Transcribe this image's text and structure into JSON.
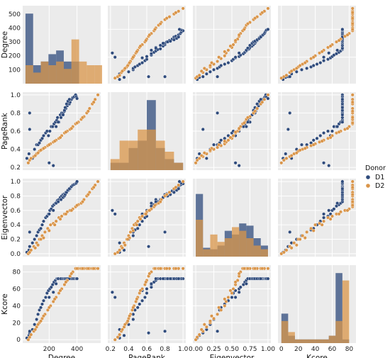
{
  "chart_data": {
    "type": "pairplot",
    "variables": [
      "Degree",
      "PageRank",
      "Eigenvector",
      "Kcore"
    ],
    "hue": {
      "title": "Donor",
      "levels": [
        {
          "name": "D1",
          "color": "#2f4b7c"
        },
        {
          "name": "D2",
          "color": "#d9954a"
        }
      ]
    },
    "axes": {
      "Degree": {
        "lim": [
          10,
          570
        ],
        "ticks": [
          200,
          400
        ],
        "tick_labels": [
          "200",
          "400"
        ],
        "diag_ticks": [
          100,
          200,
          300,
          400,
          500
        ],
        "diag_tick_labels": [
          "100",
          "200",
          "300",
          "400",
          "500"
        ]
      },
      "PageRank": {
        "lim": [
          0.17,
          1.03
        ],
        "ticks": [
          0.2,
          0.4,
          0.6,
          0.8,
          1.0
        ],
        "tick_labels": [
          "0.2",
          "0.4",
          "0.6",
          "0.8",
          "1.0"
        ]
      },
      "Eigenvector": {
        "lim": [
          -0.04,
          1.04
        ],
        "ticks": [
          0.0,
          0.25,
          0.5,
          0.75,
          1.0
        ],
        "tick_labels": [
          "0.00",
          "0.25",
          "0.50",
          "0.75",
          "1.00"
        ],
        "y_tick_labels": [
          "0.0",
          "0.2",
          "0.4",
          "0.6",
          "0.8",
          "1.0"
        ],
        "y_ticks": [
          0.0,
          0.2,
          0.4,
          0.6,
          0.8,
          1.0
        ]
      },
      "Kcore": {
        "lim": [
          -4,
          88
        ],
        "ticks": [
          0,
          20,
          40,
          60,
          80
        ],
        "tick_labels": [
          "0",
          "20",
          "40",
          "60",
          "80"
        ]
      }
    },
    "diag_hist": {
      "Degree": {
        "bins": [
          30,
          85,
          140,
          195,
          250,
          305,
          360,
          415,
          470,
          525,
          580
        ],
        "D1": [
          0.95,
          0.25,
          0.3,
          0.4,
          0.45,
          0.3,
          0.3,
          0.0,
          0.0,
          0.0
        ],
        "D2": [
          0.25,
          0.15,
          0.3,
          0.25,
          0.3,
          0.2,
          0.6,
          0.3,
          0.25,
          0.25
        ]
      },
      "PageRank": {
        "bins": [
          0.2,
          0.3,
          0.4,
          0.5,
          0.6,
          0.7,
          0.8,
          0.9,
          1.0
        ],
        "D1": [
          0.1,
          0.1,
          0.3,
          0.4,
          0.95,
          0.3,
          0.15,
          0.1
        ],
        "D2": [
          0.15,
          0.4,
          0.4,
          0.55,
          0.55,
          0.4,
          0.25,
          0.1
        ]
      },
      "Eigenvector": {
        "bins": [
          0.0,
          0.1,
          0.2,
          0.3,
          0.4,
          0.5,
          0.6,
          0.7,
          0.8,
          0.9,
          1.0
        ],
        "D1": [
          0.85,
          0.12,
          0.1,
          0.15,
          0.35,
          0.3,
          0.45,
          0.42,
          0.25,
          0.15
        ],
        "D2": [
          0.5,
          0.1,
          0.3,
          0.2,
          0.25,
          0.4,
          0.35,
          0.25,
          0.15,
          0.1
        ]
      },
      "Kcore": {
        "bins": [
          0,
          8,
          16,
          24,
          32,
          40,
          48,
          56,
          64,
          72,
          80,
          88
        ],
        "D1": [
          0.4,
          0.1,
          0.05,
          0.05,
          0.05,
          0.05,
          0.05,
          0.1,
          0.95,
          0.05,
          0.0
        ],
        "D2": [
          0.3,
          0.15,
          0.05,
          0.05,
          0.05,
          0.05,
          0.05,
          0.1,
          0.3,
          0.85,
          0.0
        ]
      }
    },
    "series": [
      {
        "name": "D1",
        "Degree": [
          40,
          55,
          60,
          80,
          95,
          110,
          120,
          130,
          140,
          150,
          160,
          175,
          185,
          195,
          205,
          215,
          225,
          235,
          245,
          255,
          260,
          270,
          280,
          290,
          300,
          310,
          320,
          330,
          340,
          345,
          350,
          355,
          360,
          370,
          380,
          390,
          395,
          400,
          200,
          230,
          60,
          250,
          265,
          285,
          300,
          310,
          315,
          325,
          335,
          345
        ],
        "PageRank": [
          0.3,
          0.35,
          0.62,
          0.3,
          0.4,
          0.45,
          0.45,
          0.47,
          0.5,
          0.52,
          0.55,
          0.58,
          0.6,
          0.55,
          0.6,
          0.65,
          0.65,
          0.68,
          0.7,
          0.72,
          0.75,
          0.7,
          0.78,
          0.8,
          0.8,
          0.82,
          0.85,
          0.88,
          0.9,
          0.9,
          0.92,
          0.95,
          0.95,
          0.97,
          0.98,
          1.0,
          0.98,
          0.96,
          0.25,
          0.22,
          0.8,
          0.65,
          0.7,
          0.75,
          0.78,
          0.83,
          0.86,
          0.9,
          0.93,
          0.95
        ],
        "Eigenvector": [
          0.02,
          0.05,
          0.1,
          0.15,
          0.2,
          0.25,
          0.3,
          0.33,
          0.35,
          0.4,
          0.45,
          0.5,
          0.52,
          0.55,
          0.6,
          0.62,
          0.66,
          0.68,
          0.7,
          0.72,
          0.74,
          0.75,
          0.78,
          0.8,
          0.82,
          0.83,
          0.85,
          0.87,
          0.88,
          0.9,
          0.9,
          0.92,
          0.93,
          0.95,
          0.96,
          0.97,
          0.98,
          1.0,
          0.55,
          0.6,
          0.3,
          0.7,
          0.72,
          0.75,
          0.78,
          0.8,
          0.82,
          0.85,
          0.88,
          0.9
        ],
        "Kcore": [
          2,
          5,
          8,
          12,
          18,
          24,
          30,
          35,
          38,
          42,
          46,
          50,
          55,
          58,
          60,
          62,
          65,
          68,
          70,
          72,
          72,
          72,
          72,
          72,
          72,
          72,
          72,
          72,
          72,
          72,
          72,
          72,
          72,
          72,
          72,
          72,
          72,
          72,
          50,
          56,
          10,
          66,
          72,
          72,
          72,
          72,
          72,
          72,
          72,
          72
        ]
      },
      {
        "name": "D2",
        "Degree": [
          50,
          60,
          70,
          90,
          110,
          130,
          150,
          170,
          190,
          210,
          230,
          250,
          270,
          290,
          310,
          330,
          350,
          370,
          390,
          410,
          430,
          450,
          470,
          490,
          510,
          530,
          550,
          120,
          160,
          200,
          240,
          280,
          320,
          360,
          400,
          440,
          480,
          520,
          100,
          140
        ],
        "PageRank": [
          0.25,
          0.28,
          0.3,
          0.32,
          0.35,
          0.38,
          0.4,
          0.42,
          0.44,
          0.46,
          0.48,
          0.5,
          0.52,
          0.55,
          0.58,
          0.6,
          0.62,
          0.65,
          0.68,
          0.7,
          0.73,
          0.76,
          0.8,
          0.85,
          0.9,
          0.95,
          1.0,
          0.36,
          0.41,
          0.45,
          0.49,
          0.53,
          0.59,
          0.63,
          0.69,
          0.75,
          0.82,
          0.92,
          0.33,
          0.39
        ],
        "Eigenvector": [
          0.0,
          0.02,
          0.05,
          0.1,
          0.15,
          0.2,
          0.25,
          0.3,
          0.35,
          0.4,
          0.42,
          0.45,
          0.5,
          0.52,
          0.55,
          0.58,
          0.6,
          0.62,
          0.65,
          0.68,
          0.7,
          0.75,
          0.8,
          0.85,
          0.9,
          0.95,
          1.0,
          0.12,
          0.22,
          0.32,
          0.4,
          0.48,
          0.55,
          0.6,
          0.67,
          0.72,
          0.82,
          0.92,
          0.08,
          0.2
        ],
        "Kcore": [
          0,
          3,
          6,
          10,
          15,
          20,
          25,
          30,
          35,
          40,
          45,
          50,
          55,
          60,
          65,
          70,
          75,
          80,
          84,
          84,
          84,
          84,
          84,
          84,
          84,
          84,
          84,
          18,
          28,
          38,
          48,
          58,
          68,
          78,
          84,
          84,
          84,
          84,
          12,
          22
        ]
      }
    ]
  }
}
